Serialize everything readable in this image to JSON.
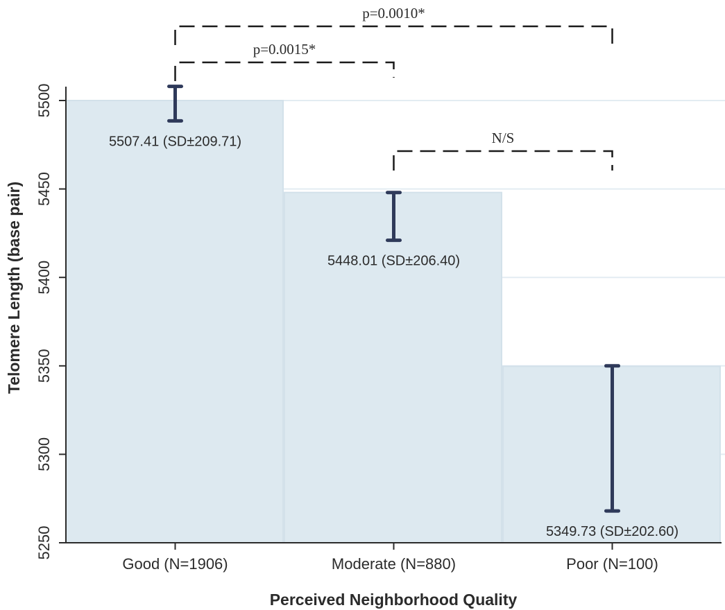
{
  "chart_data": {
    "type": "bar",
    "xlabel": "Perceived Neighborhood Quality",
    "ylabel": "Telomere Length (base pair)",
    "ylim": [
      5250,
      5500
    ],
    "yticks": [
      5250,
      5300,
      5350,
      5400,
      5450,
      5500
    ],
    "grid": true,
    "categories": [
      "Good (N=1906)",
      "Moderate (N=880)",
      "Poor (N=100)"
    ],
    "values": [
      5507.41,
      5448.01,
      5349.73
    ],
    "error_bars": [
      {
        "low": 5488.5,
        "high": 5508
      },
      {
        "low": 5421,
        "high": 5448
      },
      {
        "low": 5268,
        "high": 5350
      }
    ],
    "data_labels": [
      "5507.41 (SD±209.71)",
      "5448.01 (SD±206.40)",
      "5349.73 (SD±202.60)"
    ],
    "bar_color": "#dde9f0",
    "error_bar_color": "#2f3a5a",
    "significance_brackets": [
      {
        "from": 0,
        "to": 1,
        "label": "p=0.0015*"
      },
      {
        "from": 0,
        "to": 2,
        "label": "p=0.0010*"
      },
      {
        "from": 1,
        "to": 2,
        "label": "N/S"
      }
    ]
  }
}
